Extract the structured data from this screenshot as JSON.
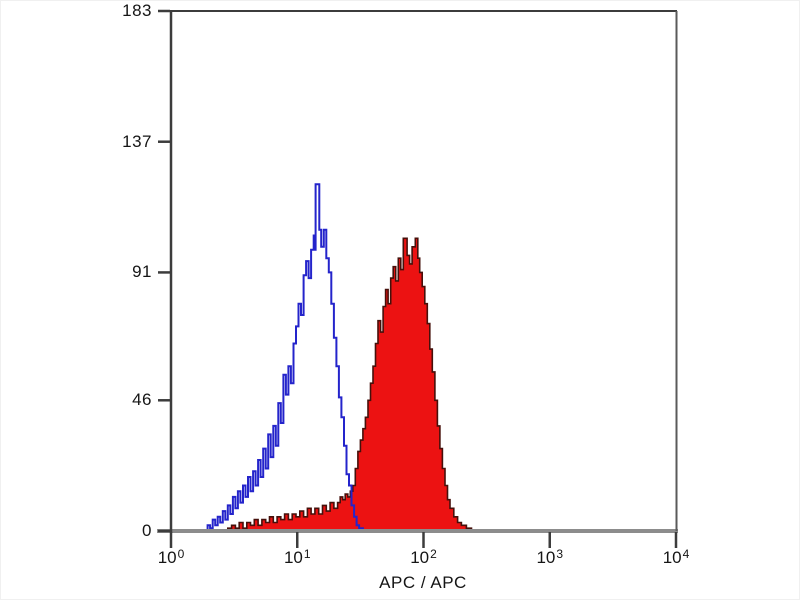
{
  "chart_data": {
    "type": "area",
    "subtype": "flow-cytometry-histogram-overlay",
    "title": "",
    "xlabel": "APC / APC",
    "ylabel": "",
    "x_scale": "log10",
    "x_tick_base": "10",
    "x_ticks_exponents": [
      0,
      1,
      2,
      3,
      4
    ],
    "xlim_log10": [
      0,
      4
    ],
    "y_ticks": [
      0,
      46,
      91,
      137,
      183
    ],
    "ylim": [
      0,
      183
    ],
    "grid": false,
    "legend": "none",
    "series": [
      {
        "name": "filled-red-histogram",
        "style": "filled",
        "line_color": "#46100b",
        "fill": "#ec1212",
        "peak_log10x": 1.88,
        "peak_count": 103,
        "points_log10x_count": [
          [
            0.0,
            0
          ],
          [
            0.42,
            0
          ],
          [
            0.45,
            1
          ],
          [
            0.48,
            2
          ],
          [
            0.51,
            1
          ],
          [
            0.54,
            3
          ],
          [
            0.57,
            1
          ],
          [
            0.6,
            3
          ],
          [
            0.63,
            2
          ],
          [
            0.66,
            4
          ],
          [
            0.69,
            2
          ],
          [
            0.72,
            4
          ],
          [
            0.75,
            3
          ],
          [
            0.78,
            5
          ],
          [
            0.81,
            3
          ],
          [
            0.84,
            5
          ],
          [
            0.87,
            4
          ],
          [
            0.9,
            6
          ],
          [
            0.93,
            4
          ],
          [
            0.96,
            6
          ],
          [
            0.99,
            5
          ],
          [
            1.02,
            7
          ],
          [
            1.05,
            5
          ],
          [
            1.08,
            8
          ],
          [
            1.11,
            6
          ],
          [
            1.14,
            8
          ],
          [
            1.17,
            6
          ],
          [
            1.2,
            9
          ],
          [
            1.23,
            7
          ],
          [
            1.26,
            10
          ],
          [
            1.29,
            8
          ],
          [
            1.32,
            10
          ],
          [
            1.34,
            12
          ],
          [
            1.36,
            11
          ],
          [
            1.38,
            13
          ],
          [
            1.4,
            12
          ],
          [
            1.42,
            14
          ],
          [
            1.44,
            16
          ],
          [
            1.46,
            22
          ],
          [
            1.48,
            28
          ],
          [
            1.5,
            32
          ],
          [
            1.52,
            36
          ],
          [
            1.54,
            40
          ],
          [
            1.56,
            46
          ],
          [
            1.58,
            52
          ],
          [
            1.6,
            58
          ],
          [
            1.62,
            66
          ],
          [
            1.64,
            74
          ],
          [
            1.66,
            70
          ],
          [
            1.68,
            79
          ],
          [
            1.7,
            85
          ],
          [
            1.72,
            80
          ],
          [
            1.74,
            89
          ],
          [
            1.76,
            93
          ],
          [
            1.78,
            88
          ],
          [
            1.8,
            96
          ],
          [
            1.82,
            92
          ],
          [
            1.84,
            103
          ],
          [
            1.87,
            97
          ],
          [
            1.89,
            94
          ],
          [
            1.91,
            100
          ],
          [
            1.935,
            103
          ],
          [
            1.955,
            96
          ],
          [
            1.97,
            91
          ],
          [
            1.99,
            86
          ],
          [
            2.01,
            80
          ],
          [
            2.03,
            73
          ],
          [
            2.05,
            64
          ],
          [
            2.07,
            56
          ],
          [
            2.09,
            46
          ],
          [
            2.11,
            37
          ],
          [
            2.13,
            29
          ],
          [
            2.15,
            22
          ],
          [
            2.17,
            16
          ],
          [
            2.19,
            11
          ],
          [
            2.21,
            8
          ],
          [
            2.24,
            5
          ],
          [
            2.27,
            3
          ],
          [
            2.3,
            2
          ],
          [
            2.34,
            1
          ],
          [
            2.38,
            0
          ],
          [
            4.0,
            0
          ]
        ]
      },
      {
        "name": "open-blue-histogram",
        "style": "open",
        "line_color": "#2424cb",
        "fill": "none",
        "peak_log10x": 1.15,
        "peak_count": 122,
        "points_log10x_count": [
          [
            0.0,
            0
          ],
          [
            0.27,
            0
          ],
          [
            0.29,
            2
          ],
          [
            0.31,
            1
          ],
          [
            0.33,
            4
          ],
          [
            0.35,
            2
          ],
          [
            0.37,
            5
          ],
          [
            0.39,
            3
          ],
          [
            0.41,
            7
          ],
          [
            0.43,
            4
          ],
          [
            0.45,
            9
          ],
          [
            0.47,
            6
          ],
          [
            0.49,
            12
          ],
          [
            0.51,
            8
          ],
          [
            0.53,
            14
          ],
          [
            0.55,
            10
          ],
          [
            0.57,
            16
          ],
          [
            0.59,
            12
          ],
          [
            0.61,
            19
          ],
          [
            0.63,
            14
          ],
          [
            0.65,
            21
          ],
          [
            0.67,
            16
          ],
          [
            0.69,
            25
          ],
          [
            0.71,
            19
          ],
          [
            0.73,
            29
          ],
          [
            0.75,
            22
          ],
          [
            0.77,
            34
          ],
          [
            0.79,
            26
          ],
          [
            0.81,
            37
          ],
          [
            0.83,
            30
          ],
          [
            0.85,
            45
          ],
          [
            0.87,
            38
          ],
          [
            0.89,
            55
          ],
          [
            0.91,
            48
          ],
          [
            0.93,
            58
          ],
          [
            0.95,
            52
          ],
          [
            0.97,
            66
          ],
          [
            0.99,
            72
          ],
          [
            1.01,
            80
          ],
          [
            1.03,
            76
          ],
          [
            1.05,
            90
          ],
          [
            1.07,
            95
          ],
          [
            1.09,
            89
          ],
          [
            1.11,
            99
          ],
          [
            1.13,
            104
          ],
          [
            1.14,
            99
          ],
          [
            1.145,
            122
          ],
          [
            1.175,
            106
          ],
          [
            1.19,
            100
          ],
          [
            1.21,
            106
          ],
          [
            1.23,
            96
          ],
          [
            1.25,
            91
          ],
          [
            1.27,
            80
          ],
          [
            1.29,
            68
          ],
          [
            1.31,
            58
          ],
          [
            1.33,
            47
          ],
          [
            1.35,
            40
          ],
          [
            1.37,
            30
          ],
          [
            1.39,
            20
          ],
          [
            1.41,
            16
          ],
          [
            1.43,
            9
          ],
          [
            1.45,
            5
          ],
          [
            1.47,
            2
          ],
          [
            1.49,
            1
          ],
          [
            1.52,
            0
          ],
          [
            4.0,
            0
          ]
        ]
      }
    ],
    "axis_colors": {
      "left_top_frame": "#3c3c3c",
      "right_frame": "#5a5a5a",
      "bottom_axis": "#8c8c8c",
      "tick": "#3c3c3c",
      "label_text": "#151515"
    }
  }
}
